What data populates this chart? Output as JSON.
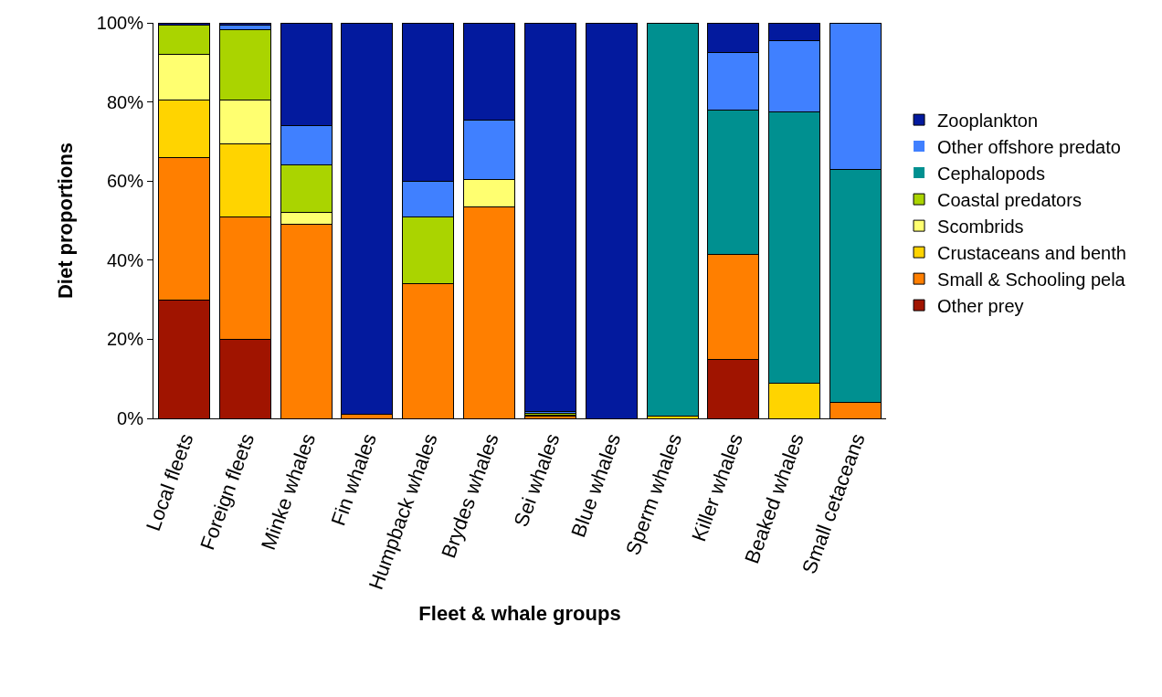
{
  "chart_data": {
    "type": "bar",
    "stacked": true,
    "xlabel": "Fleet & whale groups",
    "ylabel": "Diet proportions",
    "categories": [
      "Local fleets",
      "Foreign fleets",
      "Minke whales",
      "Fin whales",
      "Humpback whales",
      "Brydes whales",
      "Sei whales",
      "Blue whales",
      "Sperm whales",
      "Killer whales",
      "Beaked whales",
      "Small cetaceans"
    ],
    "series": [
      {
        "name": "Other prey",
        "color": "#a01400",
        "values": [
          30,
          20,
          0,
          0,
          0,
          0,
          0,
          0,
          0,
          15,
          0,
          0
        ]
      },
      {
        "name": "Small & Schooling pela",
        "color": "#ff7f00",
        "values": [
          36,
          31,
          49,
          1,
          34,
          53.5,
          0.5,
          0,
          0,
          26.5,
          0,
          4
        ]
      },
      {
        "name": "Crustaceans and benth",
        "color": "#ffd400",
        "values": [
          14.5,
          18.5,
          0,
          0,
          0,
          0,
          0.3,
          0,
          0.5,
          0,
          9,
          0
        ]
      },
      {
        "name": "Scombrids",
        "color": "#ffff70",
        "values": [
          11.5,
          11,
          3,
          0,
          0,
          7,
          0,
          0,
          0,
          0,
          0,
          0
        ]
      },
      {
        "name": "Coastal predators",
        "color": "#aad400",
        "values": [
          7.5,
          17.8,
          12,
          0,
          17,
          0,
          0.5,
          0,
          0,
          0,
          0,
          0
        ]
      },
      {
        "name": "Cephalopods",
        "color": "#009090",
        "values": [
          0,
          0,
          0,
          0,
          0,
          0,
          0,
          0,
          99.5,
          36.5,
          68.5,
          59
        ]
      },
      {
        "name": "Other offshore predato",
        "color": "#4080ff",
        "values": [
          0,
          1.2,
          10,
          0,
          9,
          15,
          0.5,
          0,
          0,
          14.5,
          18,
          37
        ]
      },
      {
        "name": "Zooplankton",
        "color": "#031a9e",
        "values": [
          0.5,
          0.5,
          26,
          99,
          40,
          24.5,
          98.2,
          100,
          0,
          7.5,
          4.5,
          0
        ]
      }
    ],
    "ylim": [
      0,
      100
    ],
    "yticks": [
      {
        "value": 0,
        "label": "0%"
      },
      {
        "value": 20,
        "label": "20%"
      },
      {
        "value": 40,
        "label": "40%"
      },
      {
        "value": 60,
        "label": "60%"
      },
      {
        "value": 80,
        "label": "80%"
      },
      {
        "value": 100,
        "label": "100%"
      }
    ],
    "grid": false,
    "legend": "right"
  }
}
